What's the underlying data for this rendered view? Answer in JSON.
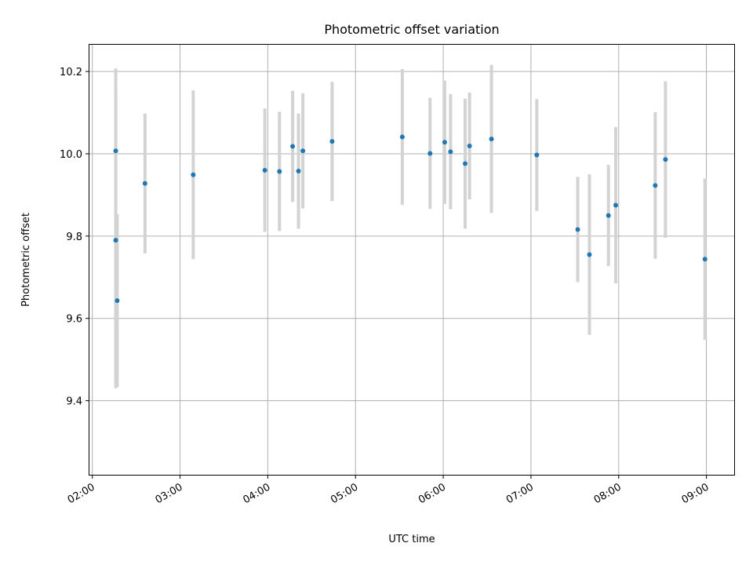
{
  "chart_data": {
    "type": "scatter",
    "title": "Photometric offset variation",
    "xlabel": "UTC time",
    "ylabel": "Photometric offset",
    "grid": true,
    "x_range": [
      "01:58",
      "09:19"
    ],
    "ylim": [
      9.22,
      10.265
    ],
    "x_ticks": [
      "02:00",
      "03:00",
      "04:00",
      "05:00",
      "06:00",
      "07:00",
      "08:00",
      "09:00"
    ],
    "y_ticks": [
      "9.4",
      "9.6",
      "9.8",
      "10.0",
      "10.2"
    ],
    "colors": {
      "marker": "#1f77b4",
      "errorbar": "#d3d3d3"
    },
    "series": [
      {
        "points": [
          {
            "x": "02:16",
            "y": 10.007,
            "yerr": 0.2
          },
          {
            "x": "02:16",
            "y": 9.79,
            "yerr": 0.36
          },
          {
            "x": "02:17",
            "y": 9.643,
            "yerr": 0.21
          },
          {
            "x": "02:36",
            "y": 9.928,
            "yerr": 0.17
          },
          {
            "x": "03:09",
            "y": 9.949,
            "yerr": 0.205
          },
          {
            "x": "03:58",
            "y": 9.96,
            "yerr": 0.15
          },
          {
            "x": "04:08",
            "y": 9.957,
            "yerr": 0.145
          },
          {
            "x": "04:17",
            "y": 10.018,
            "yerr": 0.135
          },
          {
            "x": "04:21",
            "y": 9.958,
            "yerr": 0.14
          },
          {
            "x": "04:24",
            "y": 10.007,
            "yerr": 0.14
          },
          {
            "x": "04:44",
            "y": 10.03,
            "yerr": 0.145
          },
          {
            "x": "05:32",
            "y": 10.041,
            "yerr": 0.165
          },
          {
            "x": "05:51",
            "y": 10.001,
            "yerr": 0.135
          },
          {
            "x": "06:01",
            "y": 10.028,
            "yerr": 0.15
          },
          {
            "x": "06:05",
            "y": 10.005,
            "yerr": 0.14
          },
          {
            "x": "06:15",
            "y": 9.976,
            "yerr": 0.158
          },
          {
            "x": "06:18",
            "y": 10.019,
            "yerr": 0.13
          },
          {
            "x": "06:33",
            "y": 10.036,
            "yerr": 0.18
          },
          {
            "x": "07:04",
            "y": 9.997,
            "yerr": 0.136
          },
          {
            "x": "07:32",
            "y": 9.816,
            "yerr": 0.128
          },
          {
            "x": "07:40",
            "y": 9.755,
            "yerr": 0.195
          },
          {
            "x": "07:53",
            "y": 9.85,
            "yerr": 0.123
          },
          {
            "x": "07:58",
            "y": 9.875,
            "yerr": 0.19
          },
          {
            "x": "08:25",
            "y": 9.923,
            "yerr": 0.178
          },
          {
            "x": "08:32",
            "y": 9.986,
            "yerr": 0.19
          },
          {
            "x": "08:59",
            "y": 9.744,
            "yerr": 0.196
          }
        ]
      }
    ]
  }
}
